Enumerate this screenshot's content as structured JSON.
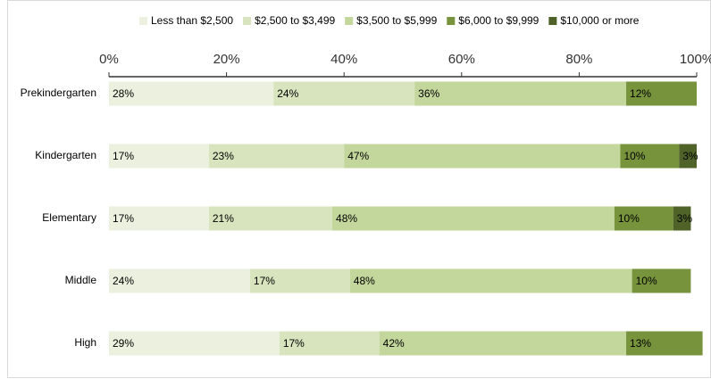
{
  "chart_data": {
    "type": "stacked_bar_horizontal",
    "categories": [
      "Prekindergarten",
      "Kindergarten",
      "Elementary",
      "Middle",
      "High"
    ],
    "series": [
      {
        "name": "Less than $2,500",
        "color": "#ebf1de",
        "values": [
          28,
          17,
          17,
          24,
          29
        ],
        "value_labels": [
          "28%",
          "17%",
          "17%",
          "24%",
          "29%"
        ]
      },
      {
        "name": "$2,500 to $3,499",
        "color": "#d7e4bd",
        "values": [
          24,
          23,
          21,
          17,
          17
        ],
        "value_labels": [
          "24%",
          "23%",
          "21%",
          "17%",
          "17%"
        ]
      },
      {
        "name": "$3,500 to $5,999",
        "color": "#c3d69b",
        "values": [
          36,
          47,
          48,
          48,
          42
        ],
        "value_labels": [
          "36%",
          "47%",
          "48%",
          "48%",
          "42%"
        ]
      },
      {
        "name": "$6,000 to $9,999",
        "color": "#77933c",
        "values": [
          12,
          10,
          10,
          10,
          13
        ],
        "value_labels": [
          "12%",
          "10%",
          "10%",
          "10%",
          "13%"
        ]
      },
      {
        "name": "$10,000 or more",
        "color": "#4f6228",
        "values": [
          null,
          3,
          3,
          null,
          null
        ],
        "value_labels": [
          null,
          "3%",
          "3%",
          null,
          null
        ]
      }
    ],
    "xlim": [
      0,
      100
    ],
    "xticks": [
      {
        "value": 0,
        "label": "0%"
      },
      {
        "value": 20,
        "label": "20%"
      },
      {
        "value": 40,
        "label": "40%"
      },
      {
        "value": 60,
        "label": "60%"
      },
      {
        "value": 80,
        "label": "80%"
      },
      {
        "value": 100,
        "label": "100%"
      }
    ],
    "legend": "top"
  }
}
